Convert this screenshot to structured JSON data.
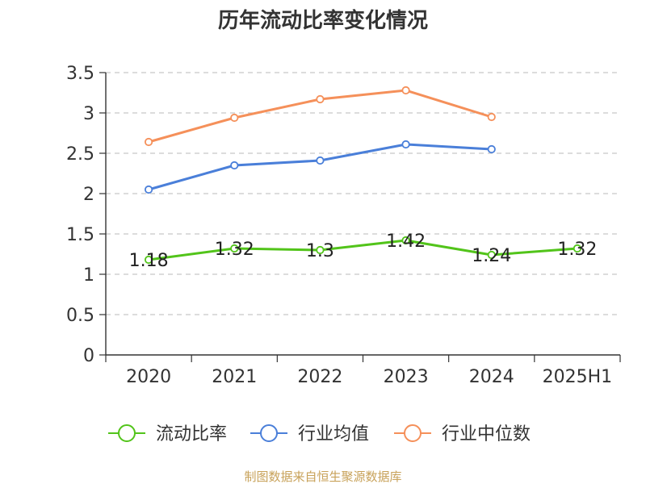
{
  "chart_data": {
    "type": "line",
    "title": "历年流动比率变化情况",
    "categories": [
      "2020",
      "2021",
      "2022",
      "2023",
      "2024",
      "2025H1"
    ],
    "y_ticks": [
      "0",
      "0.5",
      "1",
      "1.5",
      "2",
      "2.5",
      "3",
      "3.5"
    ],
    "ylim": [
      0,
      3.5
    ],
    "grid": true,
    "legend_position": "bottom",
    "series": [
      {
        "name": "流动比率",
        "color": "#52c41a",
        "values": [
          1.18,
          1.32,
          1.3,
          1.42,
          1.24,
          1.32
        ],
        "labels": [
          "1.18",
          "1.32",
          "1.3",
          "1.42",
          "1.24",
          "1.32"
        ]
      },
      {
        "name": "行业均值",
        "color": "#4a7fd9",
        "values": [
          2.05,
          2.35,
          2.41,
          2.61,
          2.55,
          null
        ]
      },
      {
        "name": "行业中位数",
        "color": "#f5905a",
        "values": [
          2.64,
          2.94,
          3.17,
          3.28,
          2.95,
          null
        ]
      }
    ]
  },
  "source_text": "制图数据来自恒生聚源数据库"
}
